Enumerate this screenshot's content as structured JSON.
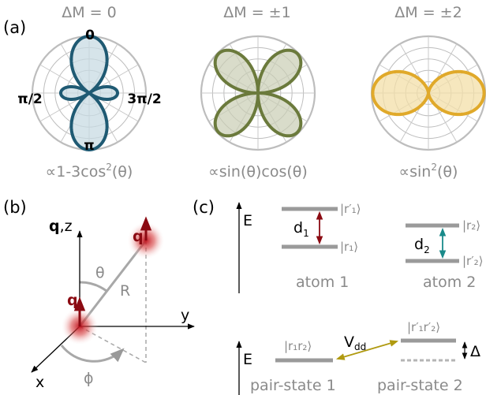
{
  "panel_a": {
    "label": "(a)",
    "headers": [
      "ΔM = 0",
      "ΔM = ±1",
      "ΔM = ±2"
    ],
    "angles": {
      "top": "0",
      "left": "π/2",
      "right": "3π/2",
      "bottom": "π"
    },
    "formulas": [
      {
        "pre": "∝1-3cos",
        "sup": "2",
        "post": "(θ)"
      },
      {
        "pre": "∝sin(θ)cos(θ)",
        "sup": "",
        "post": ""
      },
      {
        "pre": "∝sin",
        "sup": "2",
        "post": "(θ)"
      }
    ],
    "colors": {
      "dm0": "#1f5a73",
      "dm1": "#6b7a3c",
      "dm2": "#e0a92a",
      "grid": "#b8b8b8"
    }
  },
  "panel_b": {
    "label": "(b)",
    "axis_z": "q,z",
    "axis_z_bold": "q",
    "axis_z_rest": ",z",
    "axis_y": "y",
    "axis_x": "x",
    "dipole_label": "q",
    "theta": "θ",
    "phi": "ϕ",
    "distance": "R",
    "colors": {
      "dipole": "#8b0a12",
      "line": "#a0a0a0"
    }
  },
  "panel_c": {
    "label": "(c)",
    "energy_axis": "E",
    "atom1": {
      "upper": "|r′₁⟩",
      "lower": "|r₁⟩",
      "dipole": "d",
      "dipole_sub": "1",
      "name": "atom 1",
      "arrow_color": "#8b0a12"
    },
    "atom2": {
      "upper": "|r₂⟩",
      "lower": "|r′₂⟩",
      "dipole": "d",
      "dipole_sub": "2",
      "name": "atom 2",
      "arrow_color": "#1a8a8a"
    },
    "pair1": {
      "state": "|r₁r₂⟩",
      "name": "pair-state 1"
    },
    "pair2": {
      "state": "|r′₁r′₂⟩",
      "name": "pair-state 2"
    },
    "coupling": {
      "main": "V",
      "sub": "dd",
      "color": "#b09a10"
    },
    "detuning": "Δ"
  }
}
